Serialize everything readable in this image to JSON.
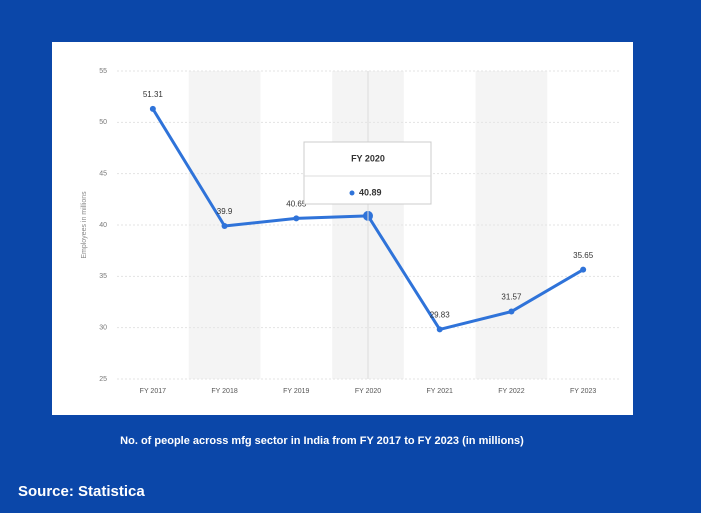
{
  "chart_data": {
    "type": "line",
    "title": "No. of people across mfg sector in India from FY 2017 to FY 2023 (in millions)",
    "y_label": "Employees in millions",
    "categories": [
      "FY 2017",
      "FY 2018",
      "FY 2019",
      "FY 2020",
      "FY 2021",
      "FY 2022",
      "FY 2023"
    ],
    "values": [
      51.31,
      39.9,
      40.65,
      40.89,
      29.83,
      31.57,
      35.65
    ],
    "color": "#2f73d9",
    "ylim": [
      25,
      55
    ],
    "yticks": [
      25,
      30,
      35,
      40,
      45,
      50,
      55
    ],
    "grid": true,
    "highlight": 3
  },
  "source": "Source: Statistica"
}
